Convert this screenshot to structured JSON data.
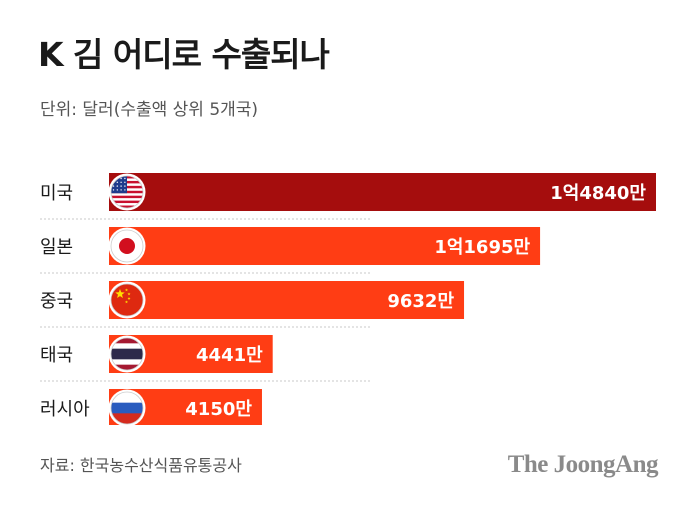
{
  "header": {
    "title": "K 김 어디로 수출되나",
    "subtitle": "단위: 달러(수출액 상위 5개국)"
  },
  "footer": {
    "source": "자료: 한국농수산식품유통공사",
    "logo_text": "The JoongAng"
  },
  "colors": {
    "top_bar": "#a50d0d",
    "bar": "#ff3d14",
    "label_text": "#ffffff",
    "separator": "#c9c9c9"
  },
  "chart_data": {
    "type": "bar",
    "orientation": "horizontal",
    "title": "K 김 어디로 수출되나",
    "unit": "달러",
    "categories": [
      "미국",
      "일본",
      "중국",
      "태국",
      "러시아"
    ],
    "values": [
      148400000,
      116950000,
      96320000,
      44410000,
      41500000
    ],
    "value_labels": [
      "1억4840만",
      "1억1695만",
      "9632만",
      "4441만",
      "4150만"
    ],
    "flags": [
      "us-flag-icon",
      "japan-flag-icon",
      "china-flag-icon",
      "thailand-flag-icon",
      "russia-flag-icon"
    ],
    "highlight_index": 0,
    "grid": false,
    "legend": "none"
  }
}
